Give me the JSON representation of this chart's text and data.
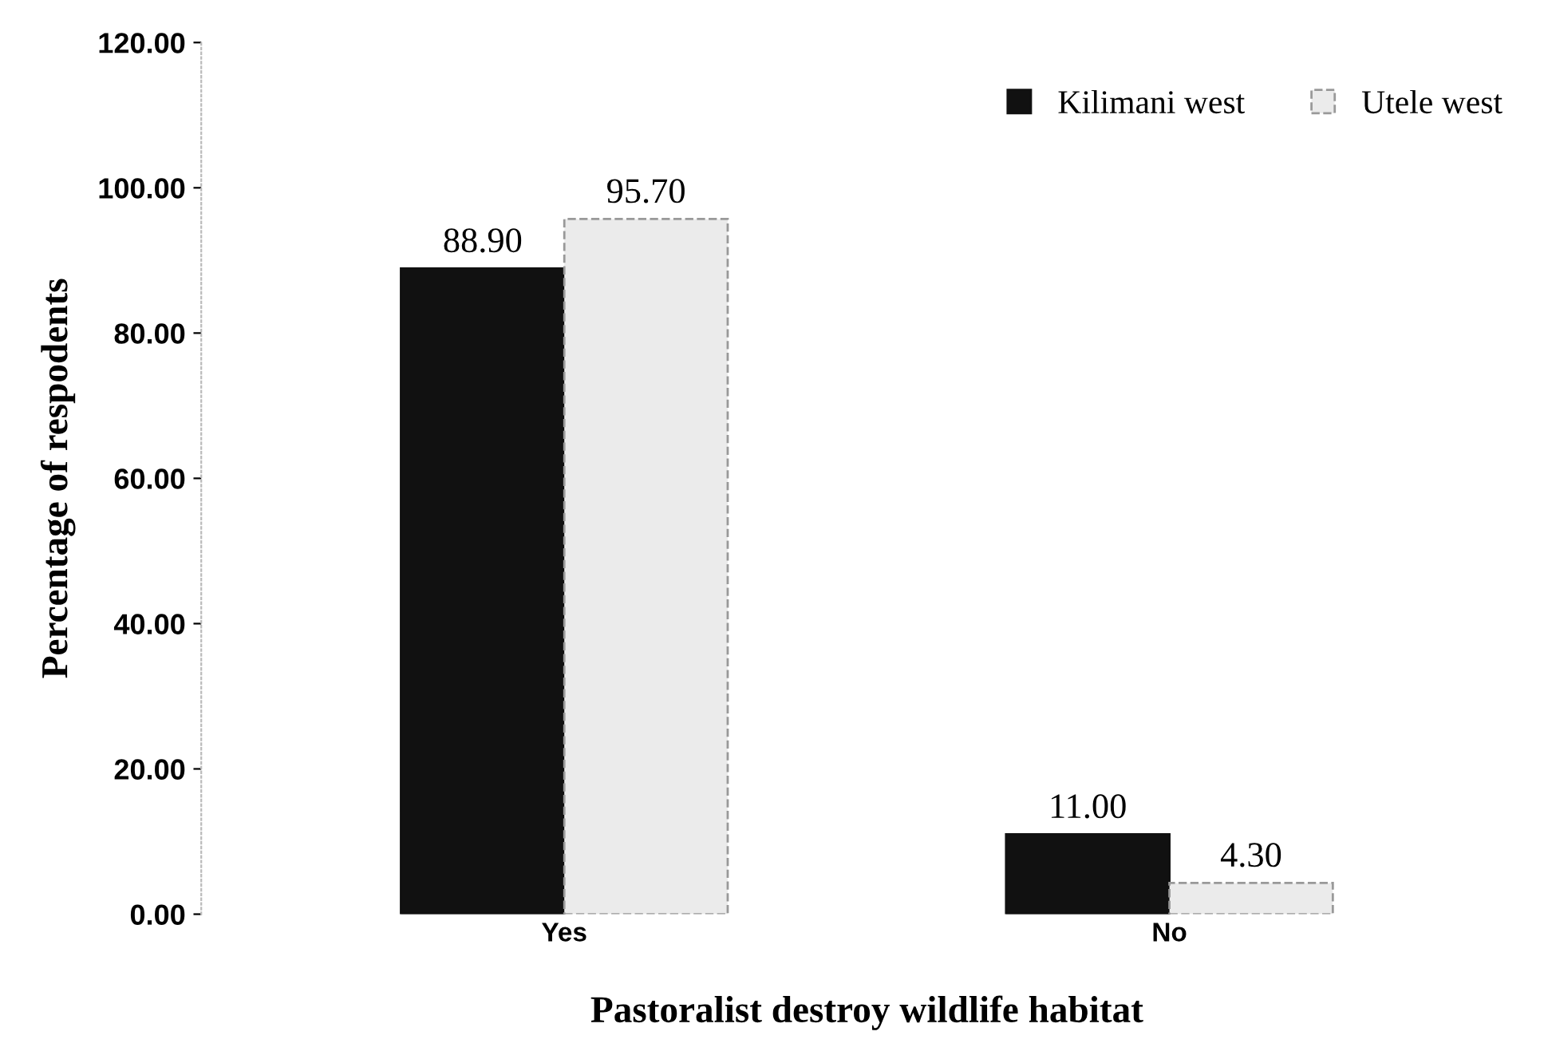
{
  "chart_data": {
    "type": "bar",
    "xlabel": "Pastoralist destroy wildlife habitat",
    "ylabel": "Percentage of respodents",
    "categories": [
      "Yes",
      "No"
    ],
    "series": [
      {
        "name": "Kilimani west",
        "color": "#111111",
        "values": [
          88.9,
          11.0
        ],
        "value_labels": [
          "88.90",
          "11.00"
        ]
      },
      {
        "name": "Utele west",
        "color": "#ebebeb",
        "values": [
          95.7,
          4.3
        ],
        "value_labels": [
          "95.70",
          "4.30"
        ]
      }
    ],
    "ylim": [
      0,
      120
    ],
    "yticks": [
      {
        "value": 0,
        "label": "0.00"
      },
      {
        "value": 20,
        "label": "20.00"
      },
      {
        "value": 40,
        "label": "40.00"
      },
      {
        "value": 60,
        "label": "60.00"
      },
      {
        "value": 80,
        "label": "80.00"
      },
      {
        "value": 100,
        "label": "100.00"
      },
      {
        "value": 120,
        "label": "120.00"
      }
    ],
    "grid": false,
    "legend": "top right"
  }
}
